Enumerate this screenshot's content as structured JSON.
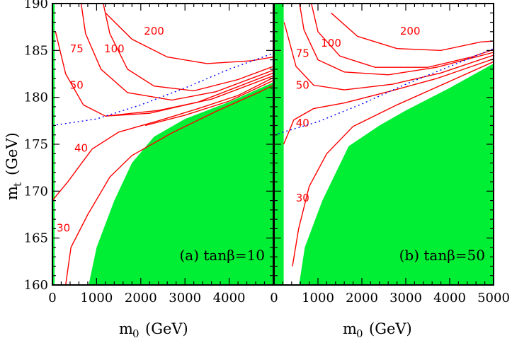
{
  "colors": {
    "excluded": "#00ee33",
    "contour": "#ff0000",
    "dotted": "#0000ff",
    "frame": "#000000"
  },
  "axes": {
    "ylabel_main": "m",
    "ylabel_sub": "t",
    "ylabel_unit": "(GeV)",
    "xlabel_main": "m",
    "xlabel_sub": "0",
    "xlabel_unit": "(GeV)"
  },
  "chart_data": [
    {
      "type": "line",
      "panel_label": "(a) tanβ=10",
      "xlim": [
        0,
        5000
      ],
      "ylim": [
        160,
        190
      ],
      "xticks": [
        0,
        1000,
        2000,
        3000,
        4000
      ],
      "yticks": [
        160,
        165,
        170,
        175,
        180,
        185,
        190
      ],
      "excluded_region": [
        [
          0,
          160
        ],
        [
          50,
          160
        ],
        [
          50,
          190
        ],
        [
          0,
          190
        ]
      ],
      "excluded_region_2": [
        [
          820,
          160
        ],
        [
          1000,
          164
        ],
        [
          1400,
          169
        ],
        [
          1800,
          173
        ],
        [
          2300,
          175.8
        ],
        [
          3000,
          177.7
        ],
        [
          4000,
          179.5
        ],
        [
          5000,
          181.6
        ],
        [
          5000,
          160
        ]
      ],
      "dotted_line": [
        [
          0,
          177
        ],
        [
          1000,
          177.7
        ],
        [
          2000,
          179.2
        ],
        [
          3000,
          181
        ],
        [
          4000,
          183
        ],
        [
          5000,
          184.7
        ]
      ],
      "contours": [
        {
          "label": "200",
          "label_at": [
            2300,
            186.7
          ],
          "points": [
            [
              1200,
              189
            ],
            [
              1800,
              186.2
            ],
            [
              2600,
              184.3
            ],
            [
              3500,
              183.6
            ],
            [
              4500,
              183.9
            ],
            [
              5000,
              184.3
            ]
          ]
        },
        {
          "label": "100",
          "label_at": [
            1400,
            184.8
          ],
          "points": [
            [
              1150,
              190
            ],
            [
              1300,
              186.8
            ],
            [
              1700,
              183
            ],
            [
              2300,
              181.2
            ],
            [
              3200,
              180.7
            ],
            [
              4200,
              181.9
            ],
            [
              5000,
              183.3
            ]
          ]
        },
        {
          "label": "75",
          "label_at": [
            550,
            184.8
          ],
          "points": [
            [
              650,
              190
            ],
            [
              750,
              186.8
            ],
            [
              1100,
              183
            ],
            [
              1700,
              180.5
            ],
            [
              2700,
              179.7
            ],
            [
              3700,
              180.6
            ],
            [
              5000,
              182.9
            ]
          ]
        },
        {
          "label": "50",
          "label_at": [
            550,
            180.9
          ],
          "points": [
            [
              70,
              187
            ],
            [
              300,
              182.5
            ],
            [
              700,
              179.2
            ],
            [
              1200,
              178
            ],
            [
              2200,
              178.3
            ],
            [
              3300,
              179.5
            ],
            [
              5000,
              182.6
            ]
          ]
        },
        {
          "label": "",
          "label_at": null,
          "points": [
            [
              1200,
              178
            ],
            [
              2400,
              178.6
            ],
            [
              3600,
              179.8
            ],
            [
              5000,
              182.3
            ]
          ]
        },
        {
          "label": "40",
          "label_at": [
            650,
            174.2
          ],
          "points": [
            [
              0,
              169
            ],
            [
              350,
              171
            ],
            [
              900,
              174.5
            ],
            [
              1500,
              176.3
            ],
            [
              2400,
              177.5
            ],
            [
              3300,
              178.8
            ],
            [
              4200,
              180.2
            ],
            [
              5000,
              182.1
            ]
          ]
        },
        {
          "label": "",
          "label_at": null,
          "points": [
            [
              2100,
              177
            ],
            [
              3000,
              178.1
            ],
            [
              4000,
              179.6
            ],
            [
              5000,
              181.8
            ]
          ]
        },
        {
          "label": "30",
          "label_at": [
            250,
            165.7
          ],
          "points": [
            [
              300,
              160
            ],
            [
              420,
              164
            ],
            [
              800,
              167.5
            ],
            [
              1300,
              171.5
            ],
            [
              1800,
              173.8
            ],
            [
              2700,
              176.2
            ],
            [
              3700,
              178.5
            ],
            [
              4700,
              180.6
            ],
            [
              5000,
              181.3
            ]
          ]
        }
      ]
    },
    {
      "type": "line",
      "panel_label": "(b) tanβ=50",
      "xlim": [
        0,
        5000
      ],
      "ylim": [
        160,
        190
      ],
      "xticks": [
        0,
        1000,
        2000,
        3000,
        4000,
        5000
      ],
      "yticks": [
        160,
        165,
        170,
        175,
        180,
        185,
        190
      ],
      "excluded_region": [
        [
          0,
          160
        ],
        [
          220,
          160
        ],
        [
          220,
          190
        ],
        [
          0,
          190
        ]
      ],
      "excluded_region_2": [
        [
          570,
          160
        ],
        [
          700,
          164
        ],
        [
          1100,
          169
        ],
        [
          1700,
          174.8
        ],
        [
          2400,
          177
        ],
        [
          3000,
          178.6
        ],
        [
          4000,
          181
        ],
        [
          5000,
          183.6
        ],
        [
          5000,
          160
        ]
      ],
      "dotted_line": [
        [
          0,
          176
        ],
        [
          1000,
          177.4
        ],
        [
          2000,
          179.3
        ],
        [
          3000,
          181.4
        ],
        [
          4000,
          183.3
        ],
        [
          5000,
          185.2
        ]
      ],
      "contours": [
        {
          "label": "200",
          "label_at": [
            3100,
            186.7
          ],
          "points": [
            [
              1300,
              189
            ],
            [
              1900,
              186.5
            ],
            [
              2800,
              185.2
            ],
            [
              3800,
              185
            ],
            [
              4700,
              185.9
            ],
            [
              5000,
              186
            ]
          ]
        },
        {
          "label": "100",
          "label_at": [
            1300,
            185.4
          ],
          "points": [
            [
              850,
              190
            ],
            [
              1000,
              187
            ],
            [
              1500,
              184.4
            ],
            [
              2300,
              183.2
            ],
            [
              3500,
              183.2
            ],
            [
              4500,
              184.3
            ],
            [
              5000,
              185.1
            ]
          ]
        },
        {
          "label": "75",
          "label_at": [
            650,
            184.3
          ],
          "points": [
            [
              580,
              190
            ],
            [
              680,
              187.2
            ],
            [
              1000,
              184
            ],
            [
              1600,
              182.7
            ],
            [
              2600,
              182.4
            ],
            [
              3700,
              183.2
            ],
            [
              5000,
              184.8
            ]
          ]
        },
        {
          "label": "50",
          "label_at": [
            650,
            180.9
          ],
          "points": [
            [
              230,
              188
            ],
            [
              500,
              183.3
            ],
            [
              900,
              181.3
            ],
            [
              1600,
              180.8
            ],
            [
              2700,
              181.4
            ],
            [
              3800,
              182.6
            ],
            [
              5000,
              184.5
            ]
          ]
        },
        {
          "label": "40",
          "label_at": [
            650,
            176.9
          ],
          "points": [
            [
              220,
              175
            ],
            [
              450,
              177.6
            ],
            [
              900,
              178.8
            ],
            [
              1600,
              179.4
            ],
            [
              2600,
              180.6
            ],
            [
              3700,
              182
            ],
            [
              5000,
              184.1
            ]
          ]
        },
        {
          "label": "30",
          "label_at": [
            650,
            168.9
          ],
          "points": [
            [
              420,
              162
            ],
            [
              560,
              166
            ],
            [
              800,
              170.5
            ],
            [
              1200,
              174
            ],
            [
              1800,
              176.9
            ],
            [
              2800,
              179.2
            ],
            [
              3900,
              181.5
            ],
            [
              5000,
              183.8
            ]
          ]
        }
      ]
    }
  ]
}
